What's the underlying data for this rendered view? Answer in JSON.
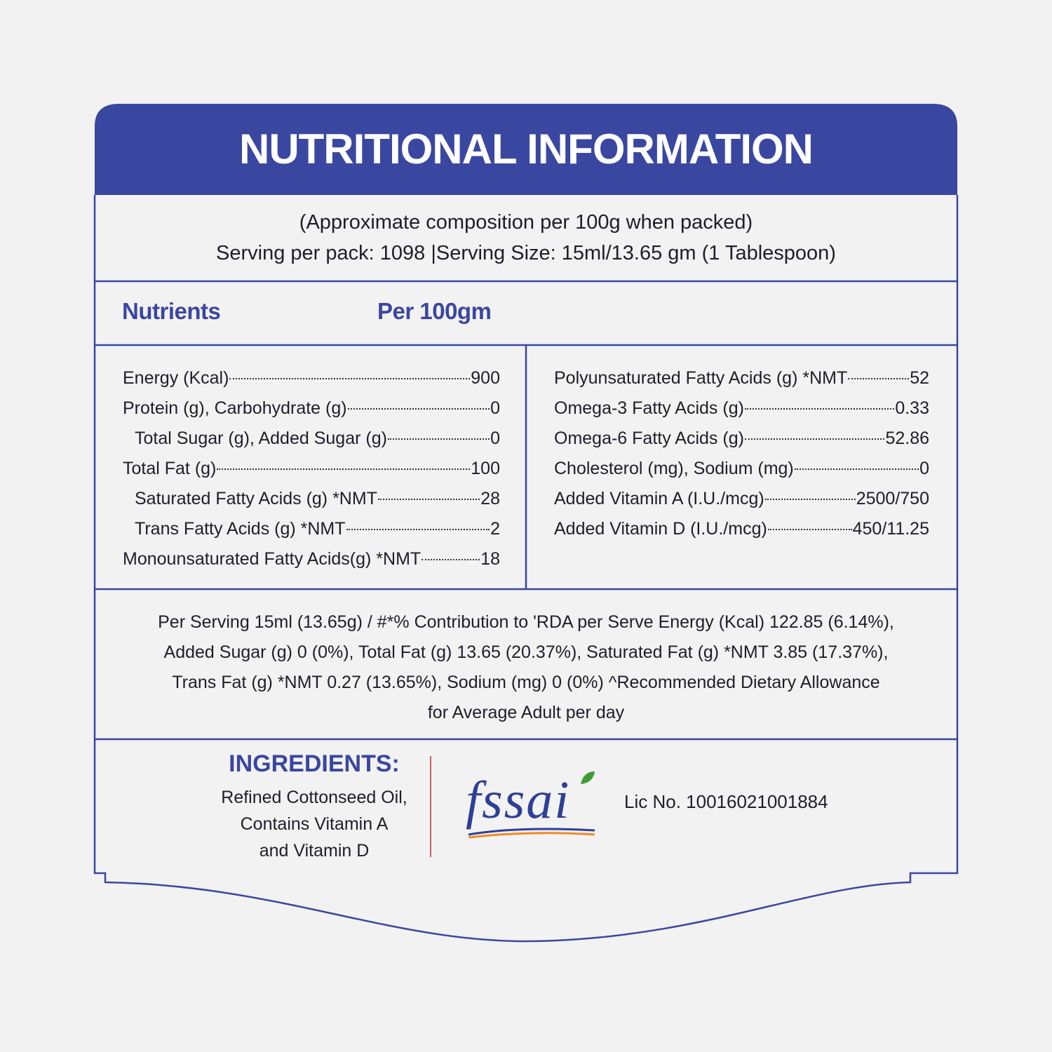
{
  "header": {
    "title": "NUTRITIONAL INFORMATION"
  },
  "intro": [
    "(Approximate composition per 100g when packed)",
    "Serving per pack: 1098 |Serving Size: 15ml/13.65 gm (1 Tablespoon)"
  ],
  "table": {
    "headers": [
      "Nutrients",
      "Per 100gm"
    ],
    "left": [
      [
        "Energy (Kcal)",
        "900"
      ],
      [
        "Protein (g), Carbohydrate (g)",
        "0"
      ],
      [
        "Total Sugar (g), Added Sugar (g)",
        "0"
      ],
      [
        "Total Fat (g)",
        "100"
      ],
      [
        "Saturated Fatty Acids (g) *NMT",
        "28"
      ],
      [
        "Trans Fatty Acids (g) *NMT",
        "2"
      ],
      [
        "Monounsaturated Fatty Acids(g) *NMT",
        "18"
      ]
    ],
    "right": [
      [
        "Polyunsaturated Fatty Acids (g) *NMT",
        "52"
      ],
      [
        "Omega-3 Fatty Acids (g)",
        "0.33"
      ],
      [
        "Omega-6 Fatty Acids (g)",
        "52.86"
      ],
      [
        "Cholesterol (mg), Sodium (mg)",
        "0"
      ],
      [
        "Added Vitamin A (I.U./mcg)",
        "2500/750"
      ],
      [
        "Added Vitamin D (I.U./mcg)",
        "450/11.25"
      ]
    ]
  },
  "footnote": [
    "Per Serving 15ml (13.65g) / #*% Contribution to 'RDA per Serve Energy (Kcal) 122.85 (6.14%),",
    "Added Sugar (g) 0 (0%), Total Fat (g) 13.65 (20.37%), Saturated Fat (g) *NMT 3.85 (17.37%),",
    "Trans Fat (g) *NMT 0.27 (13.65%), Sodium (mg) 0 (0%) ^Recommended Dietary Allowance",
    "for Average Adult per day"
  ],
  "ingredients": {
    "title": "INGREDIENTS:",
    "lines": [
      "Refined Cottonseed Oil,",
      "Contains Vitamin A",
      "and Vitamin D"
    ]
  },
  "license": {
    "logo": "fssai",
    "number": "Lic No. 10016021001884"
  }
}
